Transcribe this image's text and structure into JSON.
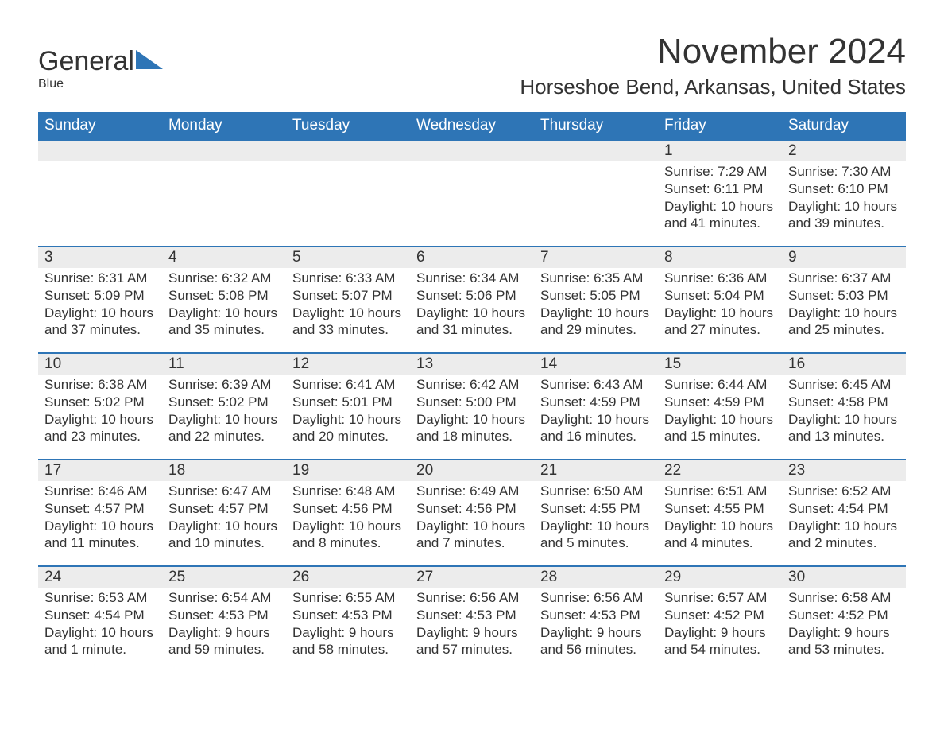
{
  "logo": {
    "word1": "General",
    "word2": "Blue",
    "brand_color": "#2e75b6"
  },
  "header": {
    "month_title": "November 2024",
    "location": "Horseshoe Bend, Arkansas, United States"
  },
  "calendar": {
    "header_bg": "#2e75b6",
    "header_fg": "#ffffff",
    "daynum_bg": "#ececec",
    "border_color": "#2e75b6",
    "text_color": "#333333",
    "days_of_week": [
      "Sunday",
      "Monday",
      "Tuesday",
      "Wednesday",
      "Thursday",
      "Friday",
      "Saturday"
    ],
    "weeks": [
      [
        null,
        null,
        null,
        null,
        null,
        {
          "n": "1",
          "sunrise": "Sunrise: 7:29 AM",
          "sunset": "Sunset: 6:11 PM",
          "daylight": "Daylight: 10 hours and 41 minutes."
        },
        {
          "n": "2",
          "sunrise": "Sunrise: 7:30 AM",
          "sunset": "Sunset: 6:10 PM",
          "daylight": "Daylight: 10 hours and 39 minutes."
        }
      ],
      [
        {
          "n": "3",
          "sunrise": "Sunrise: 6:31 AM",
          "sunset": "Sunset: 5:09 PM",
          "daylight": "Daylight: 10 hours and 37 minutes."
        },
        {
          "n": "4",
          "sunrise": "Sunrise: 6:32 AM",
          "sunset": "Sunset: 5:08 PM",
          "daylight": "Daylight: 10 hours and 35 minutes."
        },
        {
          "n": "5",
          "sunrise": "Sunrise: 6:33 AM",
          "sunset": "Sunset: 5:07 PM",
          "daylight": "Daylight: 10 hours and 33 minutes."
        },
        {
          "n": "6",
          "sunrise": "Sunrise: 6:34 AM",
          "sunset": "Sunset: 5:06 PM",
          "daylight": "Daylight: 10 hours and 31 minutes."
        },
        {
          "n": "7",
          "sunrise": "Sunrise: 6:35 AM",
          "sunset": "Sunset: 5:05 PM",
          "daylight": "Daylight: 10 hours and 29 minutes."
        },
        {
          "n": "8",
          "sunrise": "Sunrise: 6:36 AM",
          "sunset": "Sunset: 5:04 PM",
          "daylight": "Daylight: 10 hours and 27 minutes."
        },
        {
          "n": "9",
          "sunrise": "Sunrise: 6:37 AM",
          "sunset": "Sunset: 5:03 PM",
          "daylight": "Daylight: 10 hours and 25 minutes."
        }
      ],
      [
        {
          "n": "10",
          "sunrise": "Sunrise: 6:38 AM",
          "sunset": "Sunset: 5:02 PM",
          "daylight": "Daylight: 10 hours and 23 minutes."
        },
        {
          "n": "11",
          "sunrise": "Sunrise: 6:39 AM",
          "sunset": "Sunset: 5:02 PM",
          "daylight": "Daylight: 10 hours and 22 minutes."
        },
        {
          "n": "12",
          "sunrise": "Sunrise: 6:41 AM",
          "sunset": "Sunset: 5:01 PM",
          "daylight": "Daylight: 10 hours and 20 minutes."
        },
        {
          "n": "13",
          "sunrise": "Sunrise: 6:42 AM",
          "sunset": "Sunset: 5:00 PM",
          "daylight": "Daylight: 10 hours and 18 minutes."
        },
        {
          "n": "14",
          "sunrise": "Sunrise: 6:43 AM",
          "sunset": "Sunset: 4:59 PM",
          "daylight": "Daylight: 10 hours and 16 minutes."
        },
        {
          "n": "15",
          "sunrise": "Sunrise: 6:44 AM",
          "sunset": "Sunset: 4:59 PM",
          "daylight": "Daylight: 10 hours and 15 minutes."
        },
        {
          "n": "16",
          "sunrise": "Sunrise: 6:45 AM",
          "sunset": "Sunset: 4:58 PM",
          "daylight": "Daylight: 10 hours and 13 minutes."
        }
      ],
      [
        {
          "n": "17",
          "sunrise": "Sunrise: 6:46 AM",
          "sunset": "Sunset: 4:57 PM",
          "daylight": "Daylight: 10 hours and 11 minutes."
        },
        {
          "n": "18",
          "sunrise": "Sunrise: 6:47 AM",
          "sunset": "Sunset: 4:57 PM",
          "daylight": "Daylight: 10 hours and 10 minutes."
        },
        {
          "n": "19",
          "sunrise": "Sunrise: 6:48 AM",
          "sunset": "Sunset: 4:56 PM",
          "daylight": "Daylight: 10 hours and 8 minutes."
        },
        {
          "n": "20",
          "sunrise": "Sunrise: 6:49 AM",
          "sunset": "Sunset: 4:56 PM",
          "daylight": "Daylight: 10 hours and 7 minutes."
        },
        {
          "n": "21",
          "sunrise": "Sunrise: 6:50 AM",
          "sunset": "Sunset: 4:55 PM",
          "daylight": "Daylight: 10 hours and 5 minutes."
        },
        {
          "n": "22",
          "sunrise": "Sunrise: 6:51 AM",
          "sunset": "Sunset: 4:55 PM",
          "daylight": "Daylight: 10 hours and 4 minutes."
        },
        {
          "n": "23",
          "sunrise": "Sunrise: 6:52 AM",
          "sunset": "Sunset: 4:54 PM",
          "daylight": "Daylight: 10 hours and 2 minutes."
        }
      ],
      [
        {
          "n": "24",
          "sunrise": "Sunrise: 6:53 AM",
          "sunset": "Sunset: 4:54 PM",
          "daylight": "Daylight: 10 hours and 1 minute."
        },
        {
          "n": "25",
          "sunrise": "Sunrise: 6:54 AM",
          "sunset": "Sunset: 4:53 PM",
          "daylight": "Daylight: 9 hours and 59 minutes."
        },
        {
          "n": "26",
          "sunrise": "Sunrise: 6:55 AM",
          "sunset": "Sunset: 4:53 PM",
          "daylight": "Daylight: 9 hours and 58 minutes."
        },
        {
          "n": "27",
          "sunrise": "Sunrise: 6:56 AM",
          "sunset": "Sunset: 4:53 PM",
          "daylight": "Daylight: 9 hours and 57 minutes."
        },
        {
          "n": "28",
          "sunrise": "Sunrise: 6:56 AM",
          "sunset": "Sunset: 4:53 PM",
          "daylight": "Daylight: 9 hours and 56 minutes."
        },
        {
          "n": "29",
          "sunrise": "Sunrise: 6:57 AM",
          "sunset": "Sunset: 4:52 PM",
          "daylight": "Daylight: 9 hours and 54 minutes."
        },
        {
          "n": "30",
          "sunrise": "Sunrise: 6:58 AM",
          "sunset": "Sunset: 4:52 PM",
          "daylight": "Daylight: 9 hours and 53 minutes."
        }
      ]
    ]
  }
}
